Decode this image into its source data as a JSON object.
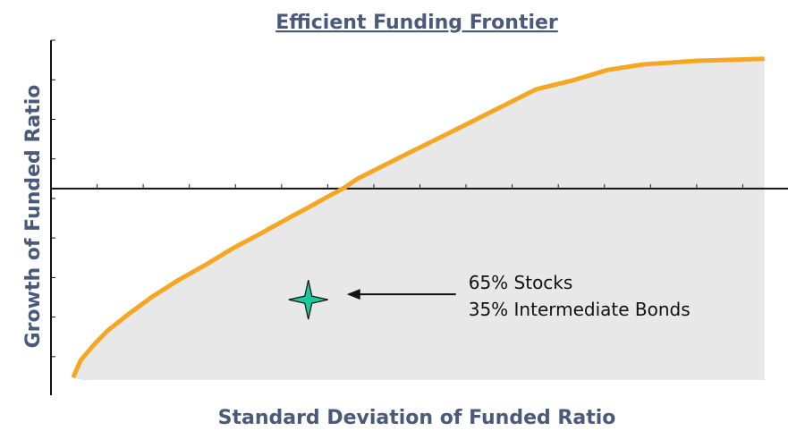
{
  "chart_data": {
    "type": "line",
    "title": "Efficient Funding Frontier",
    "xlabel": "Standard Deviation of Funded Ratio",
    "ylabel": "Growth of Funded Ratio",
    "x": [
      0.48,
      0.64,
      0.93,
      1.22,
      1.71,
      2.19,
      2.77,
      3.35,
      3.93,
      4.51,
      5.1,
      5.58,
      6.07,
      6.36,
      6.65,
      7.23,
      7.81,
      8.59,
      9.36,
      9.94,
      10.52,
      11.3,
      12.07,
      12.85,
      14.01,
      15.47
    ],
    "series": [
      {
        "color": "#f5a623",
        "area_color": "#e8e8e8",
        "values": [
          -4.78,
          -4.35,
          -3.95,
          -3.6,
          -3.15,
          -2.74,
          -2.31,
          -1.93,
          -1.52,
          -1.16,
          -0.78,
          -0.48,
          -0.16,
          0.02,
          0.25,
          0.59,
          0.93,
          1.38,
          1.83,
          2.17,
          2.51,
          2.73,
          3.0,
          3.14,
          3.23,
          3.28
        ]
      }
    ],
    "points": [
      {
        "x": 5.58,
        "y": -2.81,
        "color": "#1fc89a"
      }
    ],
    "annotation": [
      "65% Stocks",
      "35% Intermediate Bonds"
    ],
    "xlim": [
      0,
      16
    ],
    "ylim": [
      -5,
      3.75
    ],
    "xticks": [
      1,
      2,
      3,
      4,
      5,
      6,
      7,
      8,
      9,
      10,
      11,
      12,
      13,
      14,
      15
    ],
    "yticks": [
      3.75,
      2.75,
      1.75,
      0.75,
      -0.25,
      -1.25,
      -2.25,
      -3.25,
      -4.25
    ]
  }
}
